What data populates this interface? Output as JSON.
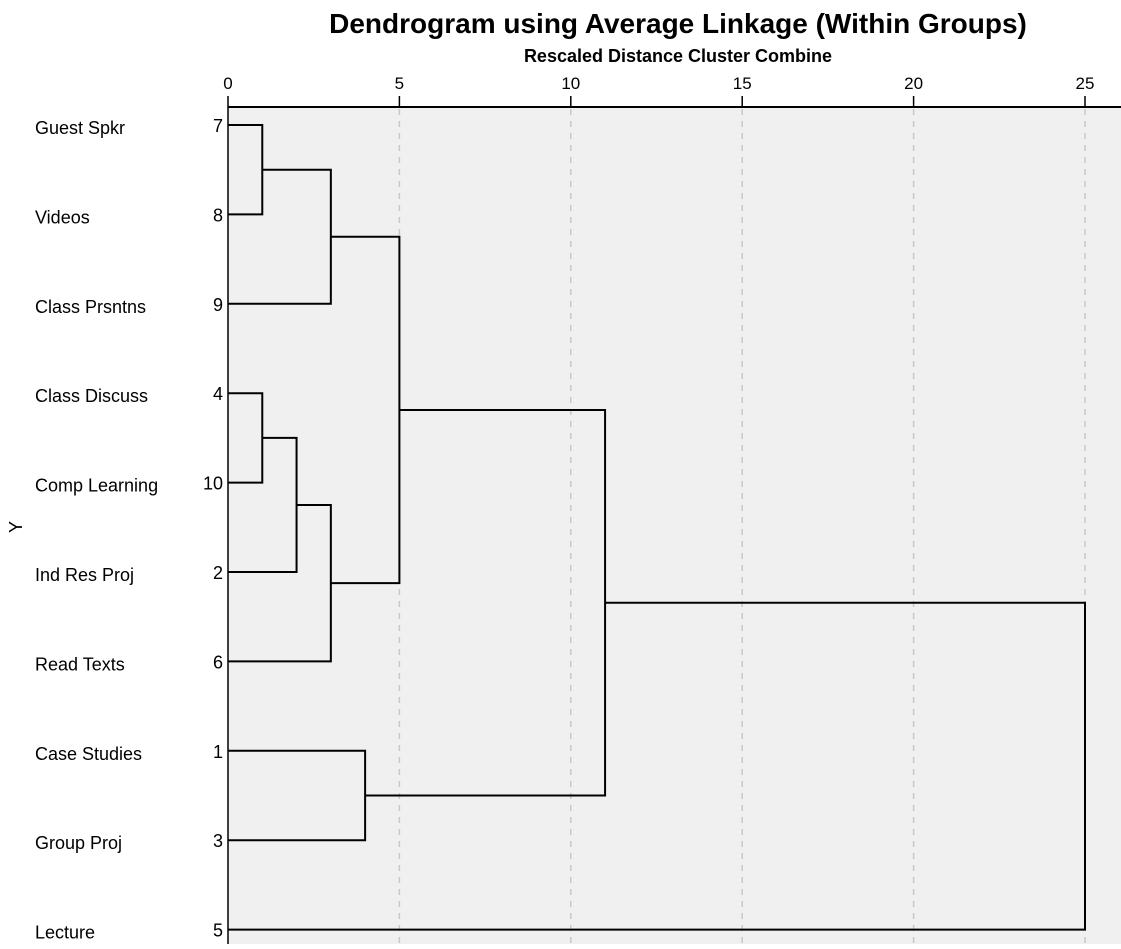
{
  "chart_data": {
    "type": "dendrogram",
    "title": "Dendrogram using Average Linkage (Within Groups)",
    "subtitle": "Rescaled Distance Cluster Combine",
    "ylabel": "Y",
    "xlim": [
      0,
      26
    ],
    "x_ticks": [
      0,
      5,
      10,
      15,
      20,
      25
    ],
    "grid": "vertical-dashed",
    "colors": {
      "plot_background": "#f0f0f0",
      "grid": "#c8c8c8",
      "lines": "#000000"
    },
    "leaves": [
      {
        "label": "Guest Spkr",
        "id": "7"
      },
      {
        "label": "Videos",
        "id": "8"
      },
      {
        "label": "Class Prsntns",
        "id": "9"
      },
      {
        "label": "Class Discuss",
        "id": "4"
      },
      {
        "label": "Comp Learning",
        "id": "10"
      },
      {
        "label": "Ind Res Proj",
        "id": "2"
      },
      {
        "label": "Read Texts",
        "id": "6"
      },
      {
        "label": "Case Studies",
        "id": "1"
      },
      {
        "label": "Group Proj",
        "id": "3"
      },
      {
        "label": "Lecture",
        "id": "5"
      }
    ],
    "merges": [
      {
        "a": "L0",
        "b": "L1",
        "distance": 1
      },
      {
        "a": "L3",
        "b": "L4",
        "distance": 1
      },
      {
        "a": "M1",
        "b": "L5",
        "distance": 2
      },
      {
        "a": "M0",
        "b": "L2",
        "distance": 3
      },
      {
        "a": "M2",
        "b": "L6",
        "distance": 3
      },
      {
        "a": "L7",
        "b": "L8",
        "distance": 4
      },
      {
        "a": "M3",
        "b": "M4",
        "distance": 5
      },
      {
        "a": "M6",
        "b": "M5",
        "distance": 11
      },
      {
        "a": "M7",
        "b": "L9",
        "distance": 25
      }
    ]
  }
}
